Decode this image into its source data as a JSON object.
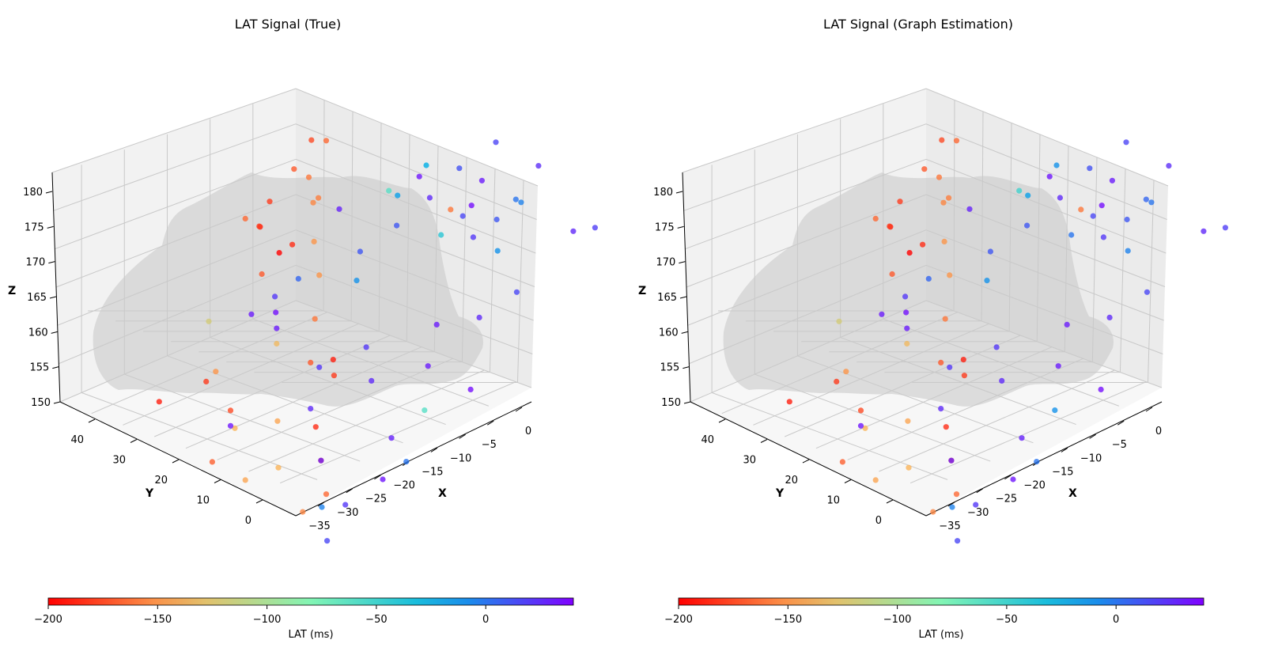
{
  "chart_data": [
    {
      "type": "scatter",
      "title": "LAT Signal (True)",
      "xlabel": "X",
      "ylabel": "Y",
      "zlabel": "Z",
      "x_ticks": [
        "0",
        "−5",
        "−10",
        "−15",
        "−20",
        "−25",
        "−30",
        "−35"
      ],
      "y_ticks": [
        "40",
        "30",
        "20",
        "10",
        "0"
      ],
      "z_ticks": [
        "180",
        "175",
        "170",
        "165",
        "160",
        "155",
        "150"
      ],
      "colorbar": {
        "label": "LAT (ms)",
        "ticks": [
          "−200",
          "−150",
          "−100",
          "−50",
          "0"
        ],
        "range": [
          -200,
          40
        ],
        "colormap": "rainbow_r"
      },
      "points": [
        [
          -200,
          -14,
          34,
          162
        ],
        [
          -190,
          -14,
          38,
          164
        ],
        [
          -185,
          -8,
          40,
          158
        ],
        [
          -180,
          -14,
          36,
          168
        ],
        [
          -175,
          -8,
          36,
          173
        ],
        [
          -170,
          -16,
          28,
          176
        ],
        [
          -165,
          -10,
          30,
          176
        ],
        [
          -160,
          -18,
          22,
          178
        ],
        [
          -158,
          -18,
          20,
          176
        ],
        [
          -155,
          -16,
          24,
          173
        ],
        [
          -150,
          -20,
          18,
          172
        ],
        [
          -150,
          -22,
          14,
          170
        ],
        [
          -160,
          -24,
          12,
          166
        ],
        [
          -170,
          -26,
          10,
          162
        ],
        [
          -180,
          -24,
          8,
          160
        ],
        [
          -190,
          -20,
          14,
          158
        ],
        [
          -185,
          -28,
          6,
          156
        ],
        [
          -175,
          -30,
          2,
          154
        ],
        [
          -165,
          -32,
          -2,
          152
        ],
        [
          -155,
          -34,
          0,
          150
        ],
        [
          -140,
          -32,
          8,
          152
        ],
        [
          -145,
          -28,
          14,
          154
        ],
        [
          -165,
          -12,
          44,
          162
        ],
        [
          -180,
          -10,
          44,
          160
        ],
        [
          -170,
          -22,
          26,
          166
        ],
        [
          -150,
          -30,
          24,
          158
        ],
        [
          -135,
          -24,
          20,
          160
        ],
        [
          -60,
          -12,
          14,
          176
        ],
        [
          -40,
          -10,
          6,
          172
        ],
        [
          -20,
          -8,
          12,
          178
        ],
        [
          -10,
          -6,
          0,
          170
        ],
        [
          -5,
          -4,
          -2,
          176
        ],
        [
          0,
          -2,
          2,
          174
        ],
        [
          10,
          -2,
          6,
          170
        ],
        [
          20,
          -4,
          8,
          168
        ],
        [
          15,
          -6,
          -4,
          166
        ],
        [
          25,
          -10,
          -2,
          164
        ],
        [
          30,
          -12,
          4,
          162
        ],
        [
          35,
          -14,
          -6,
          158
        ],
        [
          30,
          -16,
          0,
          160
        ],
        [
          25,
          -20,
          6,
          158
        ],
        [
          20,
          -18,
          10,
          160
        ],
        [
          28,
          -24,
          -4,
          156
        ],
        [
          32,
          -28,
          -8,
          154
        ],
        [
          30,
          -30,
          2,
          154
        ],
        [
          25,
          -26,
          10,
          156
        ],
        [
          20,
          -22,
          14,
          158
        ],
        [
          -5,
          -34,
          -4,
          152
        ],
        [
          15,
          -36,
          -8,
          150
        ],
        [
          20,
          -32,
          -6,
          152
        ],
        [
          25,
          -2,
          20,
          168
        ],
        [
          15,
          0,
          16,
          166
        ],
        [
          10,
          -4,
          24,
          164
        ],
        [
          5,
          -14,
          30,
          160
        ],
        [
          20,
          -16,
          32,
          158
        ],
        [
          30,
          -18,
          34,
          156
        ],
        [
          28,
          -4,
          36,
          162
        ],
        [
          -60,
          -22,
          -8,
          160
        ],
        [
          0,
          -26,
          -10,
          156
        ],
        [
          -10,
          -18,
          12,
          168
        ],
        [
          -15,
          -8,
          18,
          172
        ],
        [
          -180,
          -30,
          26,
          156
        ],
        [
          -190,
          -34,
          30,
          154
        ],
        [
          -175,
          -32,
          18,
          156
        ],
        [
          -168,
          -36,
          16,
          152
        ],
        [
          -160,
          -10,
          4,
          176
        ],
        [
          32,
          2,
          28,
          166
        ],
        [
          35,
          4,
          20,
          164
        ],
        [
          30,
          0,
          12,
          172
        ],
        [
          26,
          -2,
          -10,
          174
        ],
        [
          22,
          6,
          -12,
          168
        ],
        [
          18,
          8,
          0,
          166
        ],
        [
          24,
          4,
          6,
          174
        ],
        [
          16,
          2,
          12,
          176
        ],
        [
          12,
          -6,
          8,
          178
        ],
        [
          30,
          -24,
          20,
          162
        ],
        [
          34,
          -20,
          26,
          160
        ],
        [
          -140,
          -30,
          20,
          152
        ],
        [
          -145,
          -34,
          12,
          150
        ],
        [
          32,
          -32,
          18,
          154
        ],
        [
          10,
          -12,
          20,
          166
        ],
        [
          -120,
          -20,
          40,
          154
        ]
      ]
    },
    {
      "type": "scatter",
      "title": "LAT Signal (Graph Estimation)",
      "xlabel": "X",
      "ylabel": "Y",
      "zlabel": "Z",
      "x_ticks": [
        "0",
        "−5",
        "−10",
        "−15",
        "−20",
        "−25",
        "−30",
        "−35"
      ],
      "y_ticks": [
        "40",
        "30",
        "20",
        "10",
        "0"
      ],
      "z_ticks": [
        "180",
        "175",
        "170",
        "165",
        "160",
        "155",
        "150"
      ],
      "colorbar": {
        "label": "LAT (ms)",
        "ticks": [
          "−200",
          "−150",
          "−100",
          "−50",
          "0"
        ],
        "range": [
          -200,
          40
        ],
        "colormap": "rainbow_r"
      },
      "points": [
        [
          -200,
          -14,
          34,
          162
        ],
        [
          -190,
          -14,
          38,
          164
        ],
        [
          -185,
          -8,
          40,
          158
        ],
        [
          -180,
          -14,
          36,
          168
        ],
        [
          -175,
          -8,
          36,
          173
        ],
        [
          -170,
          -16,
          28,
          176
        ],
        [
          -165,
          -10,
          30,
          176
        ],
        [
          -160,
          -18,
          22,
          178
        ],
        [
          -158,
          -18,
          20,
          176
        ],
        [
          -155,
          -16,
          24,
          173
        ],
        [
          -150,
          -20,
          18,
          172
        ],
        [
          -150,
          -22,
          14,
          170
        ],
        [
          -160,
          -24,
          12,
          166
        ],
        [
          -170,
          -26,
          10,
          162
        ],
        [
          -180,
          -24,
          8,
          160
        ],
        [
          -190,
          -20,
          14,
          158
        ],
        [
          -185,
          -28,
          6,
          156
        ],
        [
          -175,
          -30,
          2,
          154
        ],
        [
          -165,
          -32,
          -2,
          152
        ],
        [
          -155,
          -34,
          0,
          150
        ],
        [
          -140,
          -32,
          8,
          152
        ],
        [
          -145,
          -28,
          14,
          154
        ],
        [
          -165,
          -12,
          44,
          162
        ],
        [
          -180,
          -10,
          44,
          160
        ],
        [
          -170,
          -22,
          26,
          166
        ],
        [
          -150,
          -30,
          24,
          158
        ],
        [
          -135,
          -24,
          20,
          160
        ],
        [
          -50,
          -12,
          14,
          176
        ],
        [
          0,
          -10,
          6,
          172
        ],
        [
          -10,
          -8,
          12,
          178
        ],
        [
          -5,
          -6,
          0,
          170
        ],
        [
          0,
          -4,
          -2,
          176
        ],
        [
          5,
          -2,
          2,
          174
        ],
        [
          10,
          -2,
          6,
          170
        ],
        [
          20,
          -4,
          8,
          168
        ],
        [
          15,
          -6,
          -4,
          166
        ],
        [
          25,
          -10,
          -2,
          164
        ],
        [
          30,
          -12,
          4,
          162
        ],
        [
          35,
          -14,
          -6,
          158
        ],
        [
          30,
          -16,
          0,
          160
        ],
        [
          25,
          -20,
          6,
          158
        ],
        [
          20,
          -18,
          10,
          160
        ],
        [
          28,
          -24,
          -4,
          156
        ],
        [
          32,
          -28,
          -8,
          154
        ],
        [
          30,
          -30,
          2,
          154
        ],
        [
          25,
          -26,
          10,
          156
        ],
        [
          20,
          -22,
          14,
          158
        ],
        [
          -5,
          -34,
          -4,
          152
        ],
        [
          15,
          -36,
          -8,
          150
        ],
        [
          20,
          -32,
          -6,
          152
        ],
        [
          25,
          -2,
          20,
          168
        ],
        [
          15,
          0,
          16,
          166
        ],
        [
          10,
          -4,
          24,
          164
        ],
        [
          5,
          -14,
          30,
          160
        ],
        [
          20,
          -16,
          32,
          158
        ],
        [
          30,
          -18,
          34,
          156
        ],
        [
          28,
          -4,
          36,
          162
        ],
        [
          -10,
          -22,
          -8,
          160
        ],
        [
          0,
          -26,
          -10,
          156
        ],
        [
          -10,
          -18,
          12,
          168
        ],
        [
          -15,
          -8,
          18,
          172
        ],
        [
          -180,
          -30,
          26,
          156
        ],
        [
          -190,
          -34,
          30,
          154
        ],
        [
          -175,
          -32,
          18,
          156
        ],
        [
          -168,
          -36,
          16,
          152
        ],
        [
          -160,
          -10,
          4,
          176
        ],
        [
          32,
          2,
          28,
          166
        ],
        [
          35,
          4,
          20,
          164
        ],
        [
          30,
          0,
          12,
          172
        ],
        [
          26,
          -2,
          -10,
          174
        ],
        [
          22,
          6,
          -12,
          168
        ],
        [
          18,
          8,
          0,
          166
        ],
        [
          24,
          4,
          6,
          174
        ],
        [
          16,
          2,
          12,
          176
        ],
        [
          12,
          -6,
          8,
          178
        ],
        [
          30,
          -24,
          20,
          162
        ],
        [
          34,
          -20,
          26,
          160
        ],
        [
          -140,
          -30,
          20,
          152
        ],
        [
          -145,
          -34,
          12,
          150
        ],
        [
          32,
          -32,
          18,
          154
        ],
        [
          10,
          -12,
          20,
          166
        ],
        [
          -120,
          -20,
          40,
          154
        ]
      ]
    }
  ]
}
